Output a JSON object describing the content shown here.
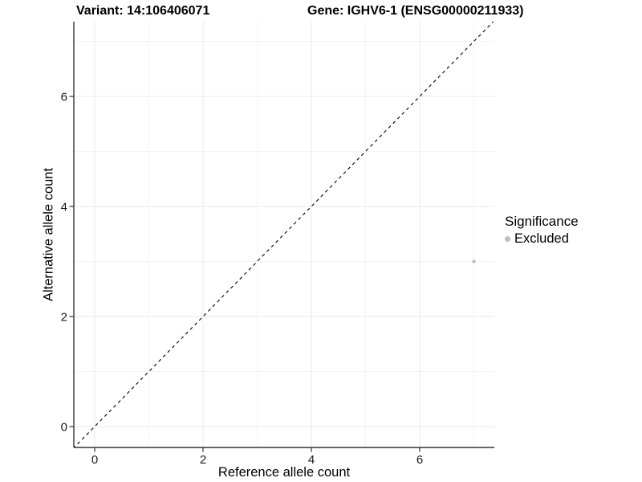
{
  "chart_data": {
    "type": "scatter",
    "title_left": "Variant: 14:106406071",
    "title_right": "Gene: IGHV6-1 (ENSG00000211933)",
    "xlabel": "Reference allele count",
    "ylabel": "Alternative allele count",
    "x_ticks": [
      0,
      2,
      4,
      6
    ],
    "y_ticks": [
      0,
      2,
      4,
      6
    ],
    "xlim": [
      -0.4,
      7.4
    ],
    "ylim": [
      -0.4,
      7.4
    ],
    "grid": "major-and-minor",
    "identity_line": {
      "style": "dashed",
      "slope": 1,
      "intercept": 0
    },
    "series": [
      {
        "name": "Excluded",
        "color": "#bdbdbd",
        "points": [
          {
            "x": 7,
            "y": 3
          }
        ]
      }
    ],
    "legend": {
      "title": "Significance",
      "position": "right",
      "items": [
        {
          "label": "Excluded",
          "color": "#bdbdbd"
        }
      ]
    }
  },
  "colors": {
    "background": "#ffffff",
    "grid_major": "#e8e8e8",
    "grid_minor": "#f4f4f4",
    "axis_line": "#333333",
    "tick_mark": "#333333",
    "text": "#000000",
    "identity_line": "#000000",
    "excluded_point": "#bdbdbd"
  }
}
